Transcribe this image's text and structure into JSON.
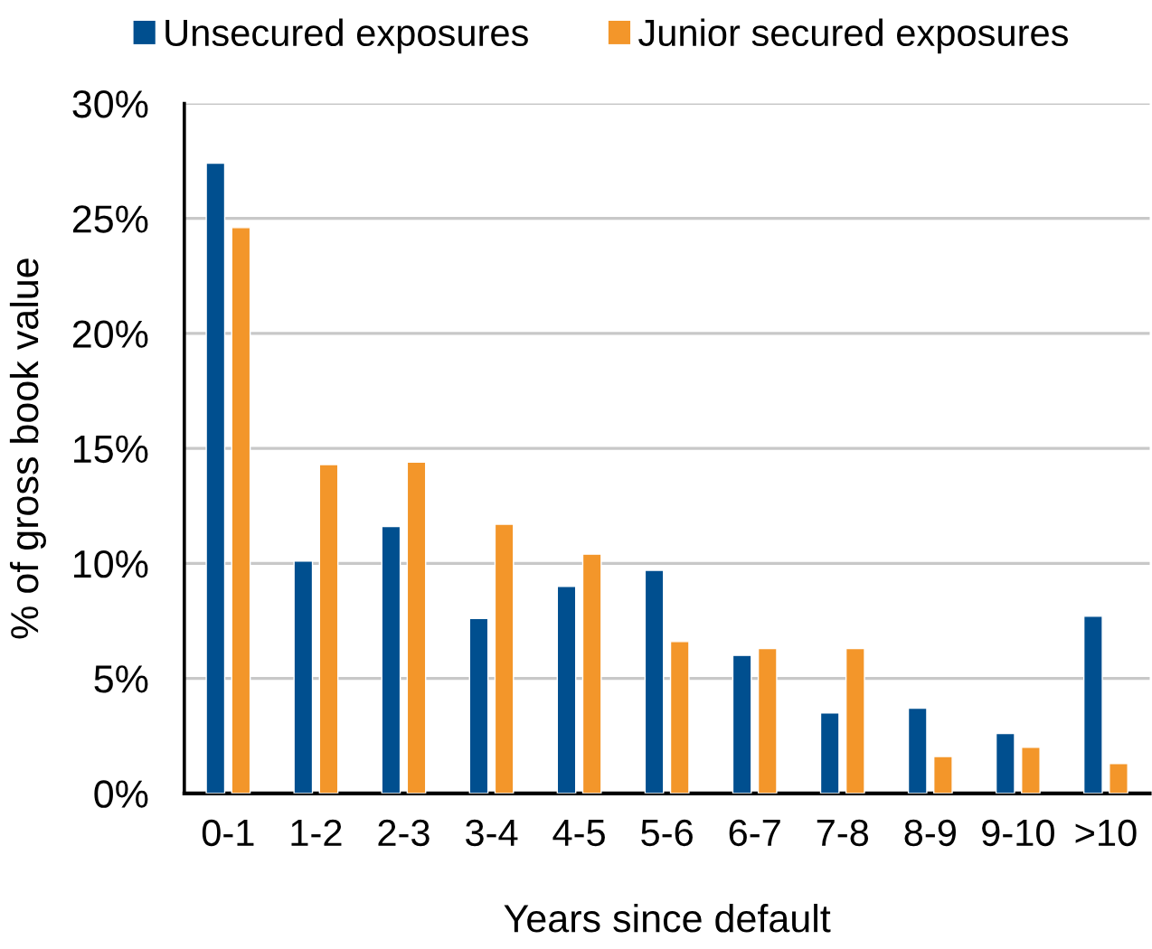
{
  "chart_data": {
    "type": "bar",
    "xlabel": "Years since default",
    "ylabel": "% of gross book value",
    "categories": [
      "0-1",
      "1-2",
      "2-3",
      "3-4",
      "4-5",
      "5-6",
      "6-7",
      "7-8",
      "8-9",
      "9-10",
      ">10"
    ],
    "series": [
      {
        "name": "Unsecured exposures",
        "color": "#004f8f",
        "values": [
          27.4,
          10.1,
          11.6,
          7.6,
          9.0,
          9.7,
          6.0,
          3.5,
          3.7,
          2.6,
          7.7
        ]
      },
      {
        "name": "Junior secured exposures",
        "color": "#f3962a",
        "values": [
          24.6,
          14.3,
          14.4,
          11.7,
          10.4,
          6.6,
          6.3,
          6.3,
          1.6,
          2.0,
          1.3
        ]
      }
    ],
    "ylim": [
      0,
      30
    ],
    "yticks": [
      {
        "value": 0,
        "label": "0%"
      },
      {
        "value": 5,
        "label": "5%"
      },
      {
        "value": 10,
        "label": "10%"
      },
      {
        "value": 15,
        "label": "15%"
      },
      {
        "value": 20,
        "label": "20%"
      },
      {
        "value": 25,
        "label": "25%"
      },
      {
        "value": 30,
        "label": "30%"
      }
    ],
    "grid": "y",
    "legend": "top"
  }
}
